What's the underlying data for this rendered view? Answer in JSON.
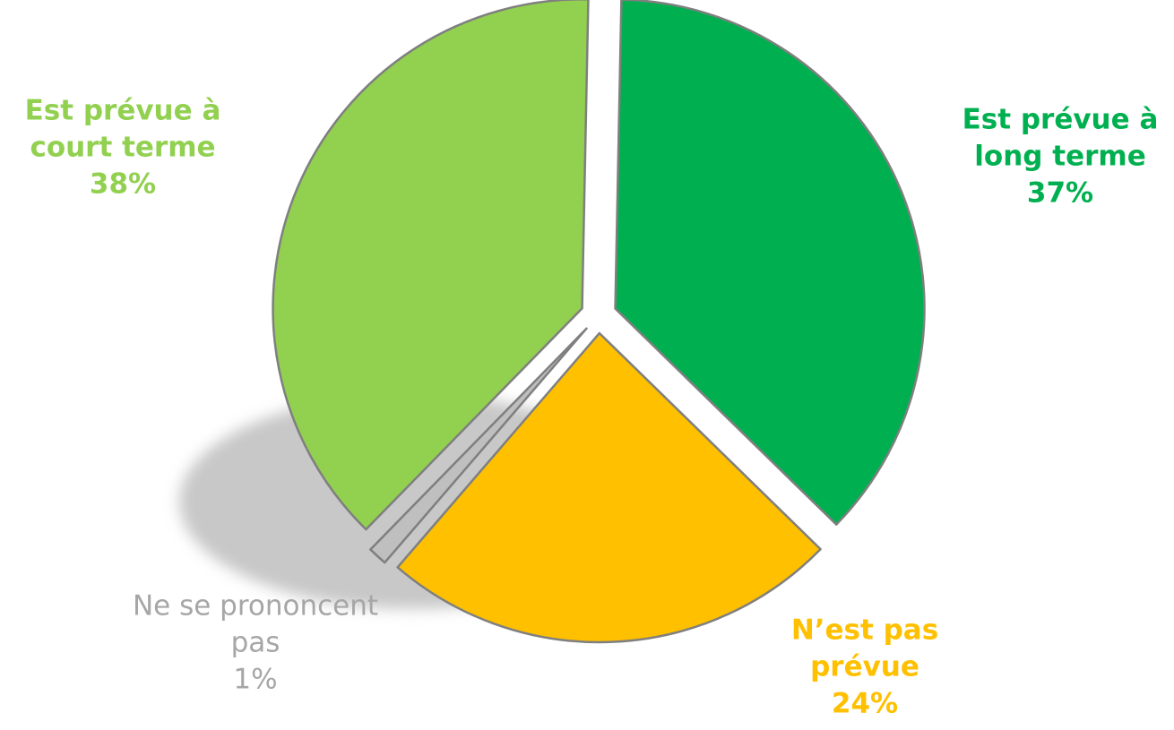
{
  "chart_data": {
    "type": "pie",
    "categories": [
      "Est prévue à long terme",
      "N’est pas prévue",
      "Ne se prononcent pas",
      "Est prévue à court terme"
    ],
    "values": [
      37,
      24,
      1,
      38
    ],
    "value_labels": [
      "37%",
      "24%",
      "1%",
      "38%"
    ],
    "colors": [
      "#00b050",
      "#ffc000",
      "#bfbfbf",
      "#92d050"
    ]
  }
}
